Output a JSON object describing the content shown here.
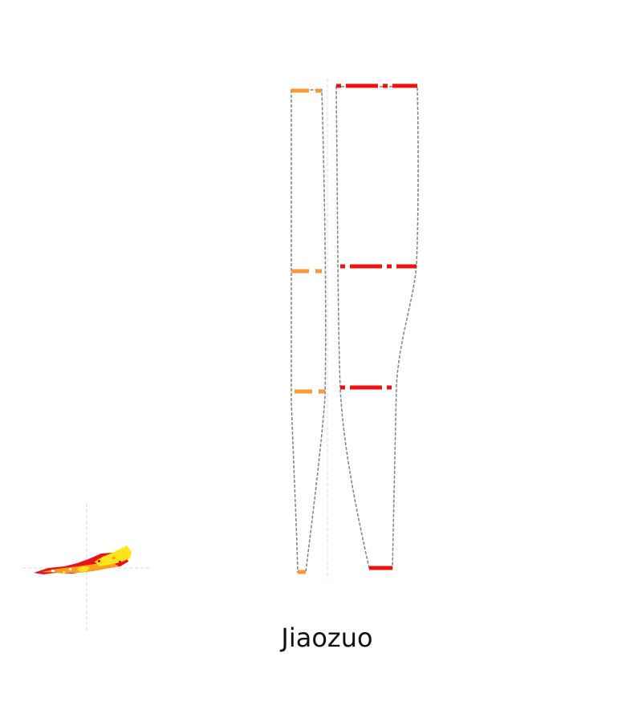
{
  "caption": "Jiaozuo",
  "colors": {
    "outline": "#808080",
    "axis": "#d8d8d8",
    "left_bands": "#f59a37",
    "right_bands": "#ef1010",
    "map_red": "#e8141c",
    "map_orange": "#f5a024",
    "map_yellow": "#ffe41a"
  }
}
